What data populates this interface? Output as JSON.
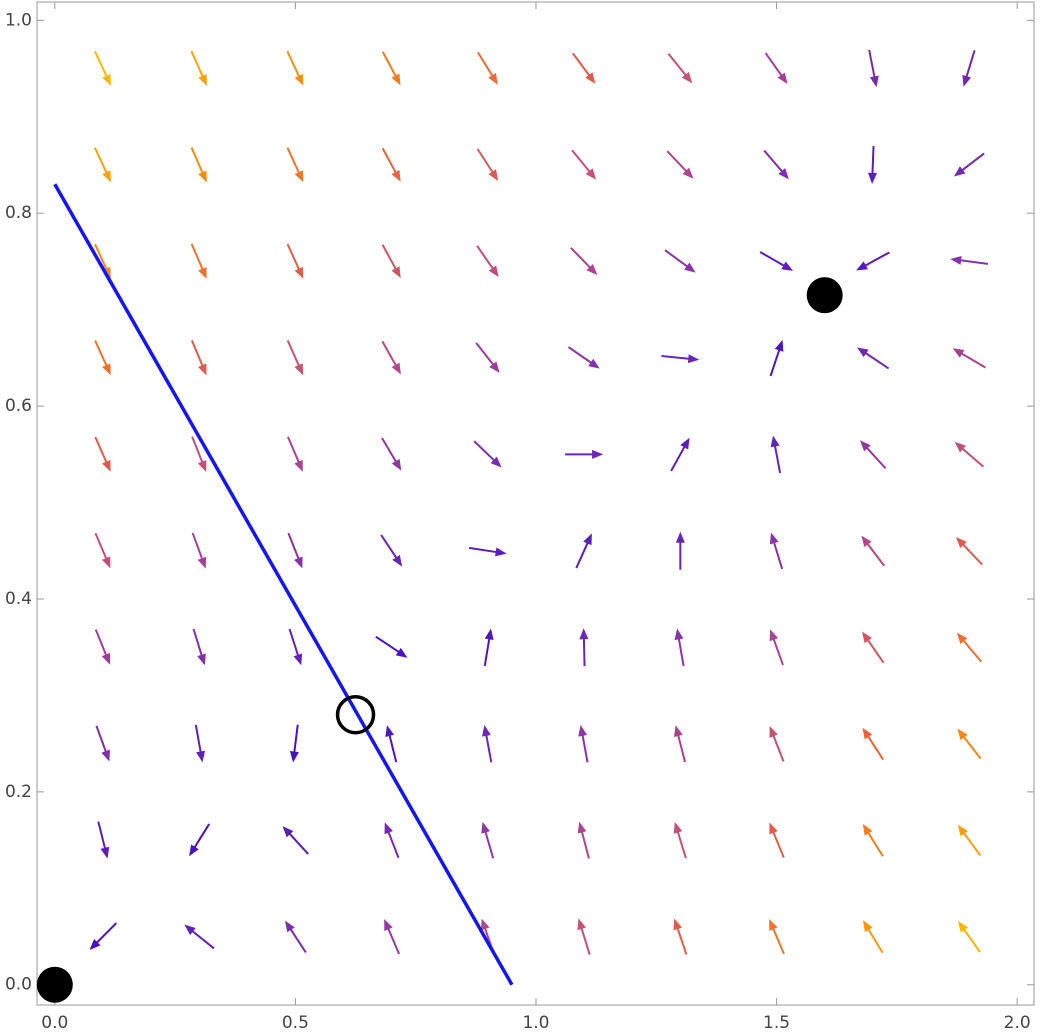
{
  "chart_data": {
    "type": "vector-field",
    "xlim": [
      -0.037,
      2.035
    ],
    "ylim": [
      -0.021,
      1.019
    ],
    "xticks": [
      {
        "value": 0,
        "label": "0.0"
      },
      {
        "value": 0.5,
        "label": "0.5"
      },
      {
        "value": 1,
        "label": "1.0"
      },
      {
        "value": 1.5,
        "label": "1.5"
      },
      {
        "value": 2,
        "label": "2.0"
      }
    ],
    "yticks": [
      {
        "value": 0,
        "label": "0.0"
      },
      {
        "value": 0.2,
        "label": "0.2"
      },
      {
        "value": 0.4,
        "label": "0.4"
      },
      {
        "value": 0.6,
        "label": "0.6"
      },
      {
        "value": 0.8,
        "label": "0.8"
      },
      {
        "value": 1,
        "label": "1.0"
      }
    ],
    "colormap": [
      "#3a0cc8",
      "#7a2cb0",
      "#b84a8a",
      "#e8623c",
      "#f7900c",
      "#fbb800"
    ],
    "field": {
      "x": [
        0.1,
        0.3,
        0.5,
        0.7,
        0.9,
        1.1,
        1.3,
        1.5,
        1.7,
        1.9
      ],
      "y": [
        0.05,
        0.15,
        0.25,
        0.35,
        0.45,
        0.55,
        0.65,
        0.75,
        0.85,
        0.95
      ],
      "u": [
        [
          -0.04,
          -0.15,
          -0.21,
          -0.24,
          -0.27,
          -0.31,
          -0.4,
          -0.56,
          -0.81,
          -1.01
        ],
        [
          0.06,
          -0.05,
          -0.11,
          -0.14,
          -0.17,
          -0.21,
          -0.3,
          -0.46,
          -0.71,
          -0.91
        ],
        [
          0.16,
          0.05,
          -0.01,
          -0.04,
          -0.07,
          -0.11,
          -0.2,
          -0.36,
          -0.61,
          -0.81
        ],
        [
          0.26,
          0.15,
          0.09,
          0.06,
          0.03,
          -0.01,
          -0.1,
          -0.26,
          -0.51,
          -0.71
        ],
        [
          0.36,
          0.25,
          0.19,
          0.16,
          0.13,
          0.09,
          0,
          -0.16,
          -0.41,
          -0.61
        ],
        [
          0.46,
          0.35,
          0.29,
          0.26,
          0.23,
          0.19,
          0.1,
          -0.06,
          -0.31,
          -0.51
        ],
        [
          0.56,
          0.45,
          0.39,
          0.36,
          0.33,
          0.29,
          0.2,
          0.04,
          -0.21,
          -0.41
        ],
        [
          0.66,
          0.55,
          0.49,
          0.46,
          0.43,
          0.39,
          0.3,
          0.14,
          -0.11,
          -0.31
        ],
        [
          0.76,
          0.65,
          0.59,
          0.56,
          0.53,
          0.49,
          0.4,
          0.24,
          -0.01,
          -0.21
        ],
        [
          0.86,
          0.75,
          0.69,
          0.66,
          0.63,
          0.59,
          0.5,
          0.34,
          0.09,
          -0.11
        ]
      ],
      "v": [
        [
          -0.02,
          0.06,
          0.16,
          0.28,
          0.39,
          0.5,
          0.59,
          0.66,
          0.67,
          0.72
        ],
        [
          -0.12,
          -0.04,
          0.06,
          0.18,
          0.29,
          0.4,
          0.49,
          0.56,
          0.57,
          0.62
        ],
        [
          -0.22,
          -0.14,
          -0.04,
          0.08,
          0.19,
          0.3,
          0.39,
          0.46,
          0.47,
          0.52
        ],
        [
          -0.32,
          -0.24,
          -0.14,
          -0.02,
          0.09,
          0.2,
          0.29,
          0.36,
          0.37,
          0.42
        ],
        [
          -0.42,
          -0.34,
          -0.24,
          -0.12,
          -0.01,
          0.1,
          0.19,
          0.26,
          0.27,
          0.32
        ],
        [
          -0.52,
          -0.44,
          -0.34,
          -0.22,
          -0.11,
          0,
          0.09,
          0.16,
          0.17,
          0.22
        ],
        [
          -0.62,
          -0.54,
          -0.44,
          -0.32,
          -0.21,
          -0.1,
          -0.01,
          0.06,
          0.07,
          0.12
        ],
        [
          -0.72,
          -0.64,
          -0.54,
          -0.42,
          -0.31,
          -0.2,
          -0.11,
          -0.04,
          -0.03,
          0.02
        ],
        [
          -0.82,
          -0.74,
          -0.64,
          -0.52,
          -0.41,
          -0.3,
          -0.21,
          -0.14,
          -0.13,
          -0.08
        ],
        [
          -0.92,
          -0.84,
          -0.74,
          -0.62,
          -0.51,
          -0.4,
          -0.31,
          -0.24,
          -0.23,
          -0.18
        ]
      ]
    },
    "separatrix": {
      "color": "#1414ff",
      "x": [
        0,
        0.95
      ],
      "y": [
        0.83,
        0
      ]
    },
    "fixed_points": [
      {
        "x": 0,
        "y": 0,
        "stable": true
      },
      {
        "x": 0.625,
        "y": 0.28,
        "stable": false
      },
      {
        "x": 1.6,
        "y": 0.715,
        "stable": true
      }
    ]
  }
}
